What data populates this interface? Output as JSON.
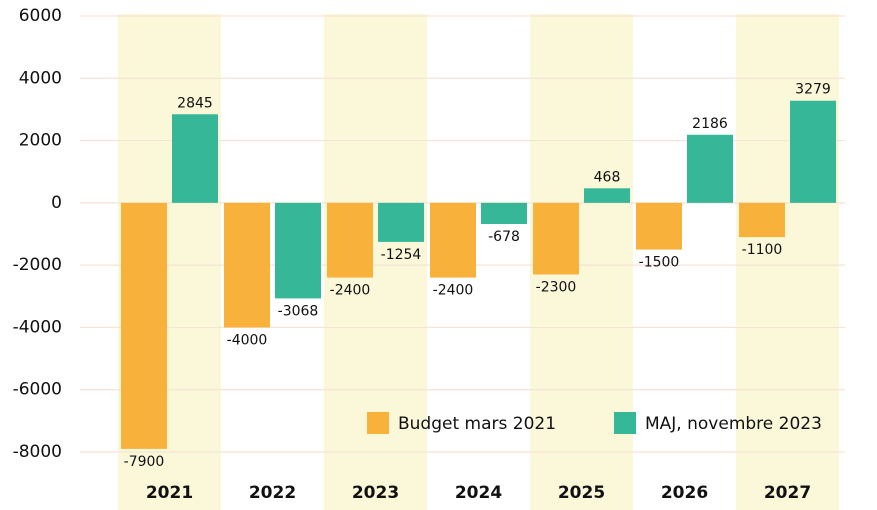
{
  "chart_data": {
    "type": "bar",
    "categories": [
      "2021",
      "2022",
      "2023",
      "2024",
      "2025",
      "2026",
      "2027"
    ],
    "series": [
      {
        "name": "Budget mars 2021",
        "color": "#f8b13a",
        "values": [
          -7900,
          -4000,
          -2400,
          -2400,
          -2300,
          -1500,
          -1100
        ]
      },
      {
        "name": "MAJ, novembre 2023",
        "color": "#36b798",
        "values": [
          2845,
          -3068,
          -1254,
          -678,
          468,
          2186,
          3279
        ]
      }
    ],
    "ylim": [
      -8000,
      6000
    ],
    "yticks": [
      -8000,
      -6000,
      -4000,
      -2000,
      0,
      2000,
      4000,
      6000
    ],
    "grid": true,
    "legend": "lower right",
    "band_color": "#fbf8d9"
  }
}
